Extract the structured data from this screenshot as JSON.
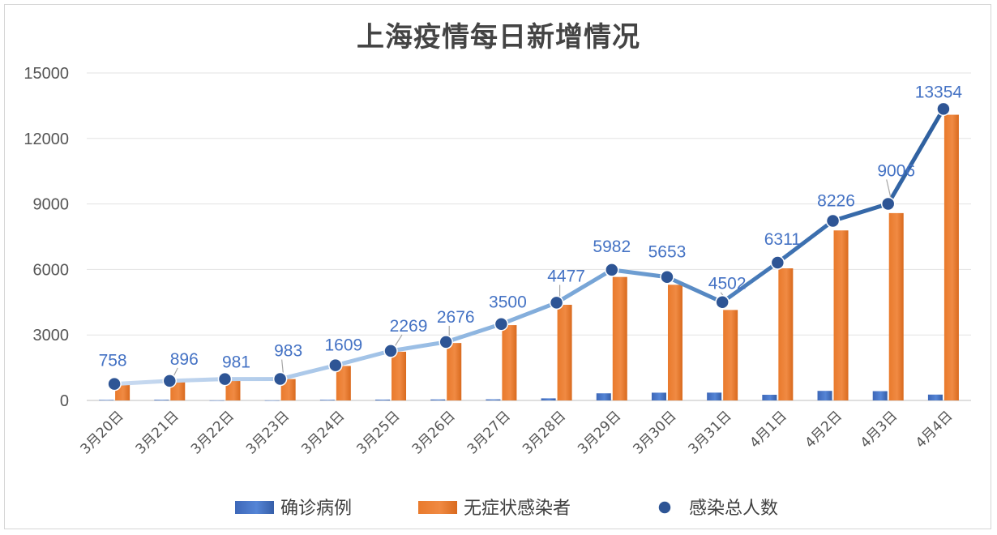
{
  "chart_data": {
    "type": "bar",
    "title": "上海疫情每日新增情况",
    "categories": [
      "3月20日",
      "3月21日",
      "3月22日",
      "3月23日",
      "3月24日",
      "3月25日",
      "3月26日",
      "3月27日",
      "3月28日",
      "3月29日",
      "3月30日",
      "3月31日",
      "4月1日",
      "4月2日",
      "4月3日",
      "4月4日"
    ],
    "ylim": [
      0,
      15000
    ],
    "yticks": [
      "0",
      "3000",
      "6000",
      "9000",
      "12000",
      "15000"
    ],
    "grid": true,
    "legend_position": "bottom",
    "series": [
      {
        "name": "确诊病例",
        "type": "bar",
        "color": "#4472c4",
        "values": [
          24,
          31,
          4,
          4,
          29,
          38,
          45,
          50,
          96,
          326,
          355,
          358,
          260,
          438,
          425,
          268
        ]
      },
      {
        "name": "无症状感染者",
        "type": "bar",
        "color": "#ed7d31",
        "values": [
          734,
          865,
          977,
          979,
          1580,
          2231,
          2631,
          3450,
          4381,
          5656,
          5298,
          4144,
          6051,
          7788,
          8581,
          13086
        ]
      },
      {
        "name": "感染总人数",
        "type": "line",
        "color": "#2e5f9e",
        "values": [
          758,
          896,
          981,
          983,
          1609,
          2269,
          2676,
          3500,
          4477,
          5982,
          5653,
          4502,
          6311,
          8226,
          9006,
          13354
        ],
        "labels": [
          "758",
          "896",
          "981",
          "983",
          "1609",
          "2269",
          "2676",
          "3500",
          "4477",
          "5982",
          "5653",
          "4502",
          "6311",
          "8226",
          "9006",
          "13354"
        ]
      }
    ]
  }
}
